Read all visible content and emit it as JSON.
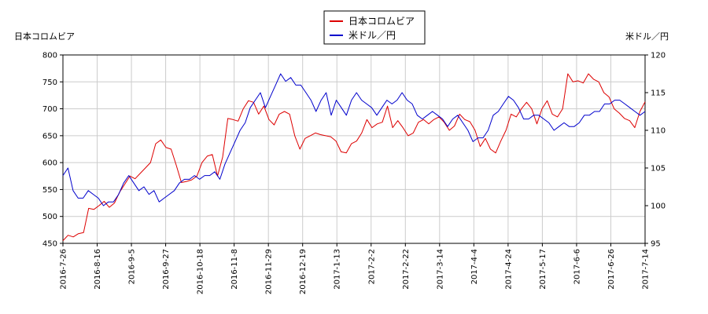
{
  "chart_data": {
    "type": "line",
    "left_axis_title": "日本コロムビア",
    "right_axis_title": "米ドル／円",
    "left_ylim": [
      450,
      800
    ],
    "left_yticks": [
      450,
      500,
      550,
      600,
      650,
      700,
      750,
      800
    ],
    "right_ylim": [
      95,
      120
    ],
    "right_yticks": [
      95,
      100,
      105,
      110,
      115,
      120
    ],
    "x_tick_labels": [
      "2016-7-26",
      "2016-8-16",
      "2016-9-5",
      "2016-9-27",
      "2016-10-18",
      "2016-11-8",
      "2016-11-29",
      "2016-12-19",
      "2017-1-13",
      "2017-2-2",
      "2017-2-22",
      "2017-3-14",
      "2017-4-4",
      "2017-4-24",
      "2017-5-17",
      "2017-6-6",
      "2017-6-26",
      "2017-7-14"
    ],
    "grid": true,
    "legend": "top-center",
    "series": [
      {
        "name": "日本コロムビア",
        "axis": "left",
        "color": "#dd0000",
        "values": [
          455,
          465,
          462,
          468,
          470,
          515,
          513,
          520,
          528,
          517,
          525,
          545,
          560,
          575,
          570,
          580,
          590,
          600,
          635,
          642,
          628,
          625,
          595,
          563,
          565,
          568,
          575,
          600,
          612,
          615,
          575,
          610,
          682,
          680,
          677,
          700,
          715,
          712,
          690,
          705,
          680,
          670,
          690,
          695,
          690,
          650,
          625,
          645,
          650,
          655,
          652,
          650,
          648,
          640,
          620,
          618,
          635,
          640,
          655,
          680,
          665,
          672,
          675,
          705,
          665,
          678,
          665,
          650,
          655,
          675,
          680,
          672,
          680,
          685,
          675,
          660,
          668,
          690,
          680,
          676,
          660,
          630,
          645,
          625,
          618,
          640,
          660,
          690,
          685,
          700,
          712,
          700,
          672,
          700,
          715,
          690,
          685,
          700,
          765,
          750,
          752,
          748,
          765,
          755,
          750,
          730,
          722,
          700,
          692,
          682,
          678,
          665,
          695,
          713
        ]
      },
      {
        "name": "米ドル／円",
        "axis": "right",
        "color": "#0000cc",
        "values": [
          104,
          105,
          102,
          101,
          101,
          102,
          101.5,
          101,
          100,
          100.5,
          100.5,
          101.5,
          103,
          104,
          103,
          102,
          102.5,
          101.5,
          102,
          100.5,
          101,
          101.5,
          102,
          103,
          103.5,
          103.5,
          104,
          103.5,
          104,
          104,
          104.5,
          103.5,
          105.5,
          107,
          108.5,
          110,
          111,
          113,
          114,
          115,
          113,
          114.5,
          116,
          117.5,
          116.5,
          117,
          116,
          116,
          115,
          114,
          112.5,
          114,
          115,
          112,
          114,
          113,
          112,
          114,
          115,
          114,
          113.5,
          113,
          112,
          113,
          114,
          113.5,
          114,
          115,
          114,
          113.5,
          112,
          111.5,
          112,
          112.5,
          112,
          111.5,
          110.5,
          111.5,
          112,
          111,
          110,
          108.5,
          109,
          109,
          110,
          112,
          112.5,
          113.5,
          114.5,
          114,
          113,
          111.5,
          111.5,
          112,
          112,
          111.5,
          111,
          110,
          110.5,
          111,
          110.5,
          110.5,
          111,
          112,
          112,
          112.5,
          112.5,
          113.5,
          113.5,
          114,
          114,
          113.5,
          113,
          112.5,
          112,
          112.5
        ]
      }
    ]
  }
}
